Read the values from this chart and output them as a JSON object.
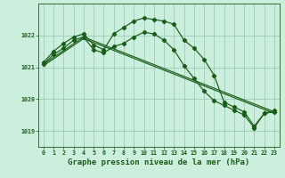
{
  "title": "Graphe pression niveau de la mer (hPa)",
  "bg_color": "#cceedd",
  "grid_color": "#99ccbb",
  "line_color": "#1a5c1a",
  "xlim": [
    -0.5,
    23.5
  ],
  "ylim": [
    1018.5,
    1023.0
  ],
  "yticks": [
    1019,
    1020,
    1021,
    1022
  ],
  "xticks": [
    0,
    1,
    2,
    3,
    4,
    5,
    6,
    7,
    8,
    9,
    10,
    11,
    12,
    13,
    14,
    15,
    16,
    17,
    18,
    19,
    20,
    21,
    22,
    23
  ],
  "series1_x": [
    0,
    1,
    2,
    3,
    4,
    5,
    6,
    7,
    8,
    9,
    10,
    11,
    12,
    13,
    14,
    15,
    16,
    17,
    18,
    19,
    20,
    21,
    22,
    23
  ],
  "series1_y": [
    1021.15,
    1021.5,
    1021.75,
    1021.95,
    1022.05,
    1021.7,
    1021.55,
    1022.05,
    1022.25,
    1022.45,
    1022.55,
    1022.5,
    1022.45,
    1022.35,
    1021.85,
    1021.6,
    1021.25,
    1020.75,
    1019.9,
    1019.75,
    1019.6,
    1019.15,
    1019.55,
    1019.65
  ],
  "series2_x": [
    0,
    1,
    2,
    3,
    4,
    5,
    6,
    7,
    8,
    9,
    10,
    11,
    12,
    13,
    14,
    15,
    16,
    17,
    18,
    19,
    20,
    21,
    22,
    23
  ],
  "series2_y": [
    1021.1,
    1021.4,
    1021.6,
    1021.85,
    1021.95,
    1021.55,
    1021.45,
    1021.65,
    1021.75,
    1021.95,
    1022.1,
    1022.05,
    1021.85,
    1021.55,
    1021.05,
    1020.65,
    1020.25,
    1019.95,
    1019.8,
    1019.65,
    1019.5,
    1019.1,
    1019.55,
    1019.6
  ],
  "series3_x": [
    0,
    4,
    23
  ],
  "series3_y": [
    1021.1,
    1021.95,
    1019.6
  ],
  "title_fontsize": 6.5,
  "tick_fontsize": 4.8
}
